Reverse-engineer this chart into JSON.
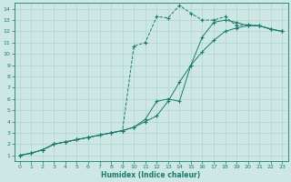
{
  "xlabel": "Humidex (Indice chaleur)",
  "bg_color": "#cde8e4",
  "grid_color": "#b0d4cf",
  "line_color": "#1a7a6e",
  "xlim": [
    -0.5,
    23.5
  ],
  "ylim": [
    0.5,
    14.5
  ],
  "xticks": [
    0,
    1,
    2,
    3,
    4,
    5,
    6,
    7,
    8,
    9,
    10,
    11,
    12,
    13,
    14,
    15,
    16,
    17,
    18,
    19,
    20,
    21,
    22,
    23
  ],
  "yticks": [
    1,
    2,
    3,
    4,
    5,
    6,
    7,
    8,
    9,
    10,
    11,
    12,
    13,
    14
  ],
  "line1_x": [
    0,
    1,
    2,
    3,
    4,
    5,
    6,
    7,
    8,
    9,
    10,
    11,
    12,
    13,
    14,
    15,
    16,
    17,
    18,
    19,
    20,
    21,
    22,
    23
  ],
  "line1_y": [
    1,
    1.2,
    1.5,
    2.0,
    2.2,
    2.4,
    2.6,
    2.8,
    3.0,
    3.2,
    10.7,
    11.0,
    13.3,
    13.2,
    14.3,
    13.6,
    13.0,
    13.0,
    13.3,
    12.5,
    12.6,
    12.5,
    12.2,
    12.0
  ],
  "line2_x": [
    0,
    1,
    2,
    3,
    4,
    5,
    6,
    7,
    8,
    9,
    10,
    11,
    12,
    13,
    14,
    15,
    16,
    17,
    18,
    19,
    20,
    21,
    22,
    23
  ],
  "line2_y": [
    1,
    1.2,
    1.5,
    2.0,
    2.2,
    2.4,
    2.6,
    2.8,
    3.0,
    3.2,
    3.5,
    4.2,
    5.8,
    6.0,
    5.8,
    9.0,
    11.5,
    12.8,
    13.0,
    12.8,
    12.5,
    12.5,
    12.2,
    12.0
  ],
  "line3_x": [
    0,
    1,
    2,
    3,
    4,
    5,
    6,
    7,
    8,
    9,
    10,
    11,
    12,
    13,
    14,
    15,
    16,
    17,
    18,
    19,
    20,
    21,
    22,
    23
  ],
  "line3_y": [
    1,
    1.2,
    1.5,
    2.0,
    2.2,
    2.4,
    2.6,
    2.8,
    3.0,
    3.2,
    3.5,
    4.0,
    4.5,
    5.8,
    7.5,
    9.0,
    10.2,
    11.2,
    12.0,
    12.3,
    12.5,
    12.5,
    12.2,
    12.0
  ],
  "xlabel_fontsize": 5.5,
  "tick_fontsize": 4.5
}
